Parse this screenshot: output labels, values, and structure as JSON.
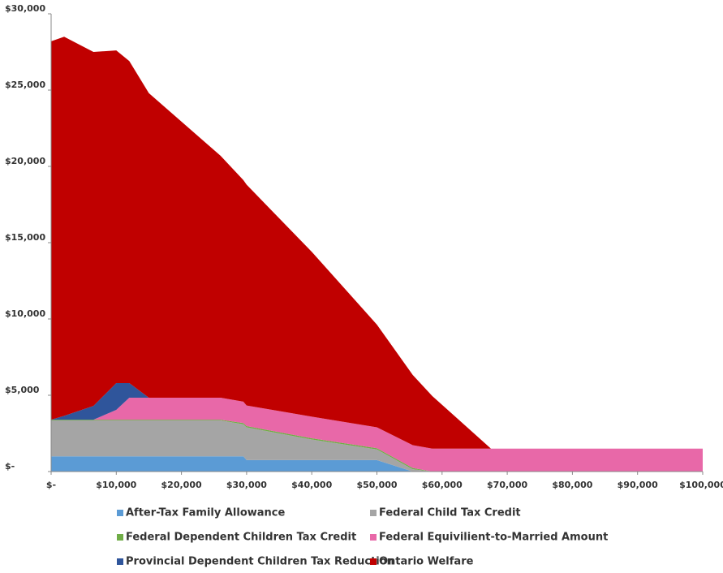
{
  "chart_data": {
    "type": "stacked-area",
    "x": [
      0,
      2000,
      6500,
      10000,
      12000,
      15000,
      26000,
      29500,
      30000,
      40000,
      50000,
      55500,
      58500,
      67500,
      100000
    ],
    "series": [
      {
        "name": "After-Tax Family Allowance",
        "color": "#5b9bd5",
        "values": [
          1000,
          1000,
          1000,
          1000,
          1000,
          1000,
          1000,
          1000,
          750,
          750,
          750,
          0,
          0,
          0,
          0
        ]
      },
      {
        "name": "Federal Child Tax Credit",
        "color": "#a5a5a5",
        "values": [
          2350,
          2350,
          2350,
          2350,
          2350,
          2350,
          2350,
          2100,
          2150,
          1350,
          700,
          150,
          0,
          0,
          0
        ]
      },
      {
        "name": "Federal Dependent Children Tax Credit",
        "color": "#70ad47",
        "values": [
          50,
          50,
          50,
          50,
          50,
          50,
          50,
          80,
          80,
          80,
          80,
          80,
          0,
          0,
          0
        ]
      },
      {
        "name": "Federal Equivilient-to-Married Amount",
        "color": "#e868a8",
        "values": [
          0,
          0,
          0,
          640,
          1440,
          1440,
          1440,
          1400,
          1350,
          1420,
          1370,
          1500,
          1500,
          1500,
          1500
        ]
      },
      {
        "name": "Provincial Dependent Children Tax Reduction",
        "color": "#2f559b",
        "values": [
          0,
          250,
          900,
          1760,
          960,
          0,
          0,
          0,
          0,
          0,
          0,
          0,
          0,
          0,
          0
        ]
      },
      {
        "name": "Ontario Welfare",
        "color": "#c00000",
        "values": [
          24800,
          24850,
          23200,
          21800,
          21100,
          19960,
          15860,
          14520,
          14470,
          10800,
          6730,
          4600,
          3450,
          0,
          0
        ]
      }
    ],
    "xlim": [
      0,
      100000
    ],
    "xticks": [
      {
        "value": 0,
        "label": "$-"
      },
      {
        "value": 10000,
        "label": "$10,000"
      },
      {
        "value": 20000,
        "label": "$20,000"
      },
      {
        "value": 30000,
        "label": "$30,000"
      },
      {
        "value": 40000,
        "label": "$40,000"
      },
      {
        "value": 50000,
        "label": "$50,000"
      },
      {
        "value": 60000,
        "label": "$60,000"
      },
      {
        "value": 70000,
        "label": "$70,000"
      },
      {
        "value": 80000,
        "label": "$80,000"
      },
      {
        "value": 90000,
        "label": "$90,000"
      },
      {
        "value": 100000,
        "label": "$100,000"
      }
    ],
    "ylim": [
      0,
      30000
    ],
    "yticks": [
      {
        "value": 0,
        "label": "$-"
      },
      {
        "value": 5000,
        "label": "$5,000"
      },
      {
        "value": 10000,
        "label": "$10,000"
      },
      {
        "value": 15000,
        "label": "$15,000"
      },
      {
        "value": 20000,
        "label": "$20,000"
      },
      {
        "value": 25000,
        "label": "$25,000"
      },
      {
        "value": 30000,
        "label": "$30,000"
      }
    ],
    "legend": "bottom"
  }
}
